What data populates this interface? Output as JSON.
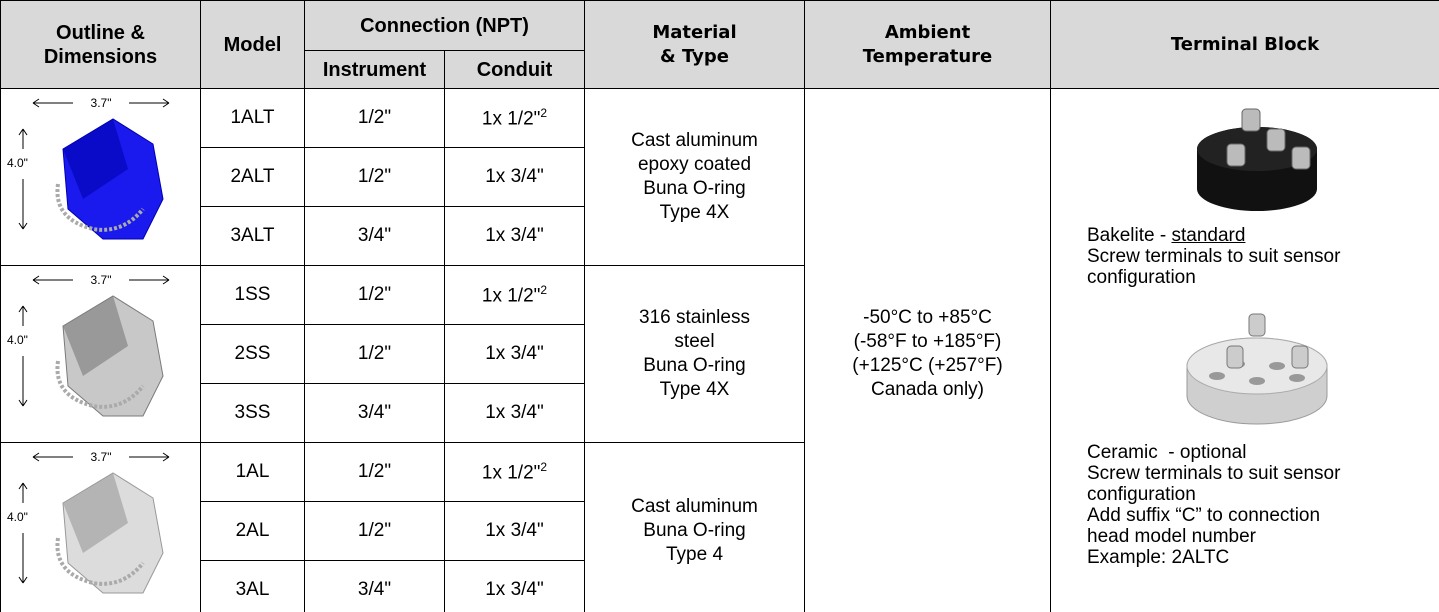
{
  "header": {
    "outline": [
      "Outline &",
      "Dimensions"
    ],
    "model": "Model",
    "connection": "Connection (NPT)",
    "instrument": "Instrument",
    "conduit": "Conduit",
    "material": [
      "Material",
      "& Type"
    ],
    "ambient": [
      "Ambient",
      "Temperature"
    ],
    "terminal": "Terminal Block"
  },
  "groups": [
    {
      "width_label": "3.7\"",
      "height_label": "4.0\"",
      "material": [
        "Cast aluminum",
        "epoxy coated",
        "Buna O-ring",
        "Type 4X"
      ],
      "rows": [
        {
          "model": "1ALT",
          "instrument": "1/2\"",
          "conduit": "1x 1/2\"",
          "conduit_sup": "2"
        },
        {
          "model": "2ALT",
          "instrument": "1/2\"",
          "conduit": "1x 3/4\""
        },
        {
          "model": "3ALT",
          "instrument": "3/4\"",
          "conduit": "1x 3/4\""
        }
      ]
    },
    {
      "width_label": "3.7\"",
      "height_label": "4.0\"",
      "material": [
        "316 stainless",
        "steel",
        "Buna O-ring",
        "Type 4X"
      ],
      "rows": [
        {
          "model": "1SS",
          "instrument": "1/2\"",
          "conduit": "1x 1/2\"",
          "conduit_sup": "2"
        },
        {
          "model": "2SS",
          "instrument": "1/2\"",
          "conduit": "1x 3/4\""
        },
        {
          "model": "3SS",
          "instrument": "3/4\"",
          "conduit": "1x 3/4\""
        }
      ]
    },
    {
      "width_label": "3.7\"",
      "height_label": "4.0\"",
      "material": [
        "Cast aluminum",
        "Buna O-ring",
        "Type 4"
      ],
      "rows": [
        {
          "model": "1AL",
          "instrument": "1/2\"",
          "conduit": "1x 1/2\"",
          "conduit_sup": "2"
        },
        {
          "model": "2AL",
          "instrument": "1/2\"",
          "conduit": "1x 3/4\""
        },
        {
          "model": "3AL",
          "instrument": "3/4\"",
          "conduit": "1x 3/4\""
        }
      ]
    }
  ],
  "ambient": [
    "-50°C to +85°C",
    "(-58°F to +185°F)",
    "(+125°C (+257°F)",
    "Canada only)"
  ],
  "terminal": {
    "bakelite": {
      "prefix": "Bakelite - ",
      "emphasis": "standard",
      "lines": [
        "Screw terminals to suit sensor",
        "configuration"
      ]
    },
    "ceramic": {
      "lines": [
        "Ceramic  - optional",
        "Screw terminals to suit sensor",
        "configuration",
        "Add suffix “C” to connection",
        "head model number",
        "Example: 2ALTC"
      ]
    }
  }
}
